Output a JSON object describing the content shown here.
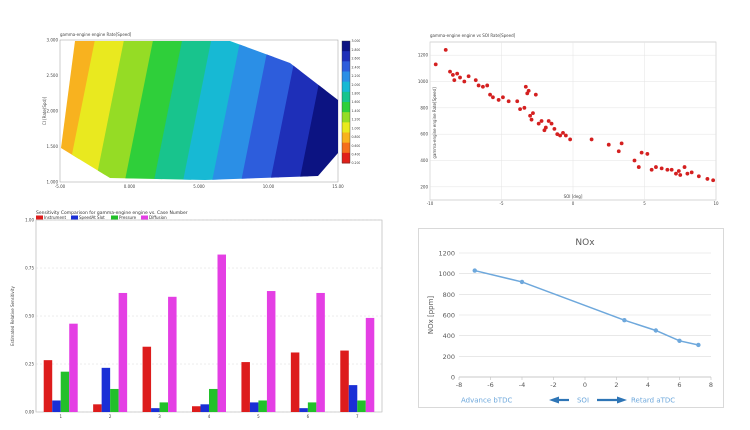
{
  "chart_data": [
    {
      "type": "heatmap",
      "title": "gamma-engine engine Rate[Speed]",
      "xlabel": "",
      "ylabel": "CI [Rate(Spd)]",
      "x_tick_labels": [
        "-5.00",
        "0.000",
        "5.000",
        "10.00",
        "15.00"
      ],
      "y_tick_labels": [
        "3.000",
        "2.500",
        "2.000",
        "1.500",
        "1.000"
      ],
      "colorbar_labels": [
        "3.000",
        "2.800",
        "2.600",
        "2.400",
        "2.200",
        "2.000",
        "1.800",
        "1.600",
        "1.400",
        "1.200",
        "1.000",
        "0.800",
        "0.600",
        "0.400",
        "0.200"
      ],
      "colors": [
        "#e0201a",
        "#f46f1d",
        "#f8b21f",
        "#e9e91f",
        "#95dc25",
        "#2fcf3a",
        "#18c48d",
        "#17b9d4",
        "#2b8fe6",
        "#2d5ddc",
        "#1e2fb8",
        "#0c1382"
      ]
    },
    {
      "type": "scatter",
      "title": "gamma-engine engine vs SOI Rate[Speed]",
      "xlabel": "SOI [deg]",
      "ylabel": "gamma-engine engine Rate[Speed]",
      "x_tick_labels": [
        "-10",
        "-5",
        "0",
        "5",
        "10"
      ],
      "y_tick_labels": [
        "1200",
        "1000",
        "800",
        "600",
        "400",
        "200"
      ],
      "xlim": [
        -10,
        10
      ],
      "ylim": [
        100,
        1300
      ],
      "point_color": "#d42020",
      "points": [
        [
          -9.6,
          1130
        ],
        [
          -8.9,
          1240
        ],
        [
          -8.6,
          1075
        ],
        [
          -8.4,
          1050
        ],
        [
          -8.3,
          1010
        ],
        [
          -8.1,
          1060
        ],
        [
          -7.9,
          1030
        ],
        [
          -7.6,
          1000
        ],
        [
          -7.3,
          1040
        ],
        [
          -6.8,
          1010
        ],
        [
          -6.6,
          970
        ],
        [
          -6.3,
          960
        ],
        [
          -6.0,
          970
        ],
        [
          -5.8,
          900
        ],
        [
          -5.6,
          880
        ],
        [
          -5.2,
          860
        ],
        [
          -4.9,
          880
        ],
        [
          -4.5,
          850
        ],
        [
          -3.9,
          850
        ],
        [
          -3.7,
          790
        ],
        [
          -3.4,
          800
        ],
        [
          -3.3,
          960
        ],
        [
          -3.2,
          910
        ],
        [
          -3.1,
          930
        ],
        [
          -3.0,
          740
        ],
        [
          -2.9,
          710
        ],
        [
          -2.8,
          760
        ],
        [
          -2.6,
          900
        ],
        [
          -2.4,
          680
        ],
        [
          -2.2,
          700
        ],
        [
          -2.0,
          630
        ],
        [
          -1.9,
          650
        ],
        [
          -1.7,
          700
        ],
        [
          -1.5,
          680
        ],
        [
          -1.3,
          640
        ],
        [
          -1.1,
          600
        ],
        [
          -0.9,
          590
        ],
        [
          -0.7,
          610
        ],
        [
          -0.5,
          590
        ],
        [
          -0.2,
          560
        ],
        [
          1.3,
          560
        ],
        [
          2.5,
          520
        ],
        [
          3.2,
          470
        ],
        [
          3.4,
          530
        ],
        [
          4.3,
          400
        ],
        [
          4.6,
          350
        ],
        [
          4.8,
          460
        ],
        [
          5.2,
          450
        ],
        [
          5.5,
          330
        ],
        [
          5.8,
          350
        ],
        [
          6.2,
          340
        ],
        [
          6.6,
          330
        ],
        [
          6.9,
          330
        ],
        [
          7.2,
          300
        ],
        [
          7.4,
          320
        ],
        [
          7.5,
          290
        ],
        [
          7.8,
          350
        ],
        [
          8.0,
          300
        ],
        [
          8.3,
          310
        ],
        [
          8.8,
          280
        ],
        [
          9.4,
          260
        ],
        [
          9.8,
          250
        ]
      ]
    },
    {
      "type": "bar",
      "title": "Sensitivity Comparison for gamma-engine engine vs. Case Number",
      "xlabel": "",
      "ylabel": "Estimated Relative Sensitivity",
      "categories": [
        "1",
        "2",
        "3",
        "4",
        "5",
        "6",
        "7"
      ],
      "ylim": [
        0,
        1
      ],
      "y_tick_labels": [
        "1.00",
        "0.75",
        "0.50",
        "0.25",
        "0.00"
      ],
      "legend_position": "top-left",
      "series": [
        {
          "name": "Instrument",
          "color": "#dd1c1c",
          "values": [
            0.27,
            0.04,
            0.34,
            0.03,
            0.26,
            0.31,
            0.32
          ]
        },
        {
          "name": "SpeedAt Slot",
          "color": "#1a2fd6",
          "values": [
            0.06,
            0.23,
            0.02,
            0.04,
            0.05,
            0.02,
            0.14
          ]
        },
        {
          "name": "Pressure",
          "color": "#22c02a",
          "values": [
            0.21,
            0.12,
            0.05,
            0.12,
            0.06,
            0.05,
            0.06
          ]
        },
        {
          "name": "Diffusion",
          "color": "#e43fe4",
          "values": [
            0.46,
            0.62,
            0.6,
            0.82,
            0.63,
            0.62,
            0.49
          ]
        }
      ]
    },
    {
      "type": "line",
      "title": "NOx",
      "xlabel": "",
      "ylabel": "NOx [ppm]",
      "x": [
        -7,
        -4,
        2.5,
        4.5,
        6,
        7.2
      ],
      "values": [
        1030,
        920,
        550,
        450,
        350,
        310
      ],
      "xlim": [
        -8,
        8
      ],
      "ylim": [
        0,
        1200
      ],
      "x_tick_labels": [
        "-8",
        "-6",
        "-4",
        "-2",
        "0",
        "2",
        "4",
        "6",
        "8"
      ],
      "y_tick_labels": [
        "0",
        "200",
        "400",
        "600",
        "800",
        "1000",
        "1200"
      ],
      "grid": true,
      "line_color": "#6ea8dc",
      "annotation_left": "Advance bTDC",
      "annotation_center": "SOI",
      "annotation_right": "Retard aTDC",
      "arrow_color": "#2e75b6"
    }
  ]
}
